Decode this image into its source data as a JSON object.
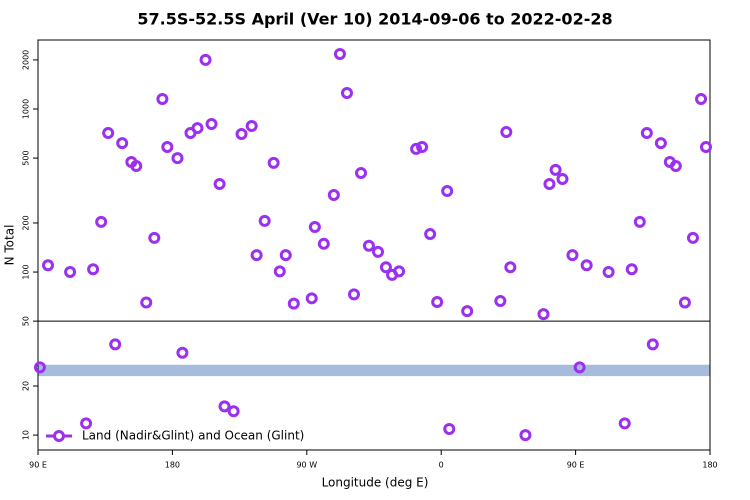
{
  "chart_data": {
    "type": "scatter",
    "title": "57.5S-52.5S April (Ver 10)   2014-09-06 to 2022-02-28",
    "x_label": "Longitude (deg E)",
    "y_label": "N Total",
    "log_y": true,
    "xlim": [
      90,
      540
    ],
    "ylim": [
      8.1,
      2650
    ],
    "xticks": [
      {
        "value": 90,
        "label": "90 E"
      },
      180,
      {
        "value": 270,
        "label": "90 W"
      },
      {
        "value": 360,
        "label": "0"
      },
      {
        "value": 450,
        "label": "90 E"
      },
      {
        "value": 540,
        "label": "180"
      }
    ],
    "yticks": [
      10,
      20,
      50,
      100,
      200,
      500,
      1000,
      2000
    ],
    "reference_line": 50,
    "band": [
      23,
      27
    ],
    "band_color": "#a7bbdc",
    "legend": "bottom-left",
    "series": [
      {
        "name": "Land (Nadir&Glint) and Ocean (Glint)",
        "color": "#9b30f0",
        "x": [
          91.3,
          96.7,
          111.5,
          122.2,
          126.9,
          132.3,
          137,
          141.7,
          146.4,
          152.5,
          155.8,
          162.5,
          167.9,
          173.3,
          176.6,
          183.4,
          186.7,
          192.1,
          196.8,
          202.2,
          206.2,
          211.6,
          214.9,
          221,
          226.3,
          233.1,
          236.4,
          241.8,
          247.8,
          251.9,
          255.9,
          261.3,
          273.3,
          275.4,
          281.4,
          288.1,
          292.2,
          296.9,
          301.6,
          306.3,
          311.6,
          317.7,
          323,
          327.1,
          331.8,
          343.2,
          347.2,
          352.6,
          357.3,
          364,
          365.4,
          377.4,
          399.6,
          403.6,
          406.3,
          416.4,
          428.5,
          432.5,
          436.6,
          441.2,
          447.9,
          452.7,
          457.4,
          472.1,
          482.9,
          487.6,
          493,
          497.7,
          501.7,
          507.1,
          513.1,
          517.1,
          523.2,
          528.6,
          534,
          537.3
        ],
        "values": [
          26,
          110,
          100,
          11.8,
          104,
          203,
          713,
          36,
          618,
          473,
          447,
          65,
          162,
          1151,
          585,
          500,
          32,
          713,
          764,
          2000,
          809,
          347,
          15,
          14,
          703,
          787,
          127,
          206,
          467,
          101,
          127,
          64,
          69,
          189,
          149,
          297,
          2173,
          1253,
          73,
          405,
          145,
          133,
          107,
          96,
          101,
          569,
          585,
          171,
          65.5,
          314,
          10.9,
          57.6,
          66.4,
          723,
          107,
          10,
          55.2,
          347,
          423,
          372,
          127,
          26,
          110,
          100,
          11.8,
          104,
          203,
          713,
          36,
          618,
          473,
          447,
          65,
          162,
          1151,
          585
        ]
      }
    ]
  }
}
